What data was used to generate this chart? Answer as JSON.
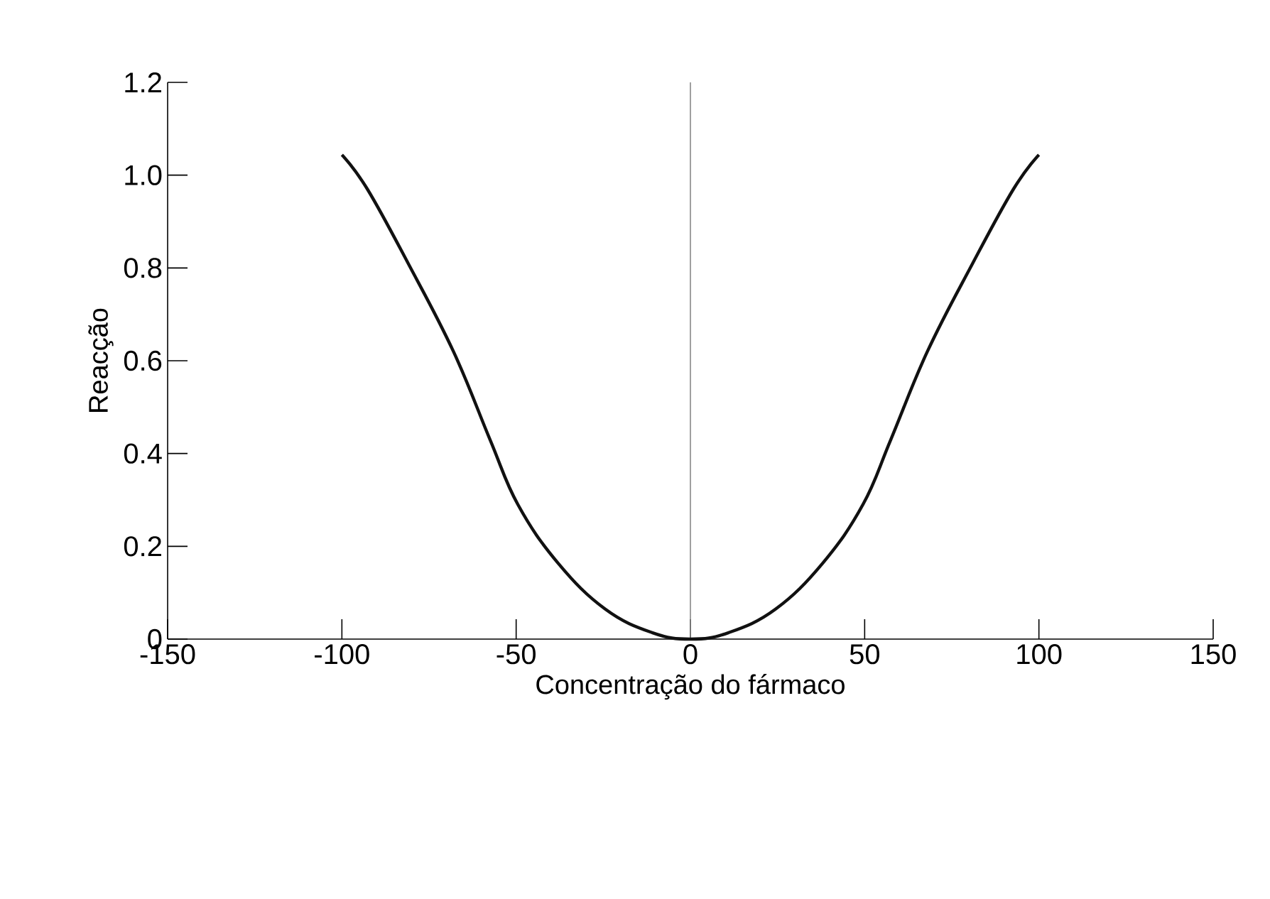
{
  "chart_data": {
    "type": "line",
    "xlabel": "Concentração do fármaco",
    "ylabel": "Reacção",
    "x": [
      -100,
      -92.7,
      -81,
      -68,
      -57.5,
      -49.5,
      -38,
      -24.5,
      -11,
      0,
      11,
      24.5,
      38,
      49.5,
      57.5,
      68,
      81,
      92.7,
      100
    ],
    "series": [
      {
        "color": "#111111",
        "values": [
          1.044,
          0.97,
          0.81,
          0.62,
          0.43,
          0.29,
          0.164,
          0.065,
          0.014,
          0,
          0.014,
          0.065,
          0.164,
          0.29,
          0.43,
          0.62,
          0.81,
          0.97,
          1.044
        ]
      }
    ],
    "xlim": [
      -150,
      150
    ],
    "ylim": [
      0,
      1.2
    ],
    "xticks": [
      -150,
      -100,
      -50,
      0,
      50,
      100,
      150
    ],
    "yticks": [
      0,
      0.2,
      0.4,
      0.6,
      0.8,
      {
        "value": 1,
        "label": "1.0"
      },
      1.2
    ],
    "ref_lines": [
      {
        "axis": "x",
        "value": 0,
        "color": "#888888"
      }
    ],
    "grid": false,
    "marker": "none",
    "line_style": "solid"
  }
}
